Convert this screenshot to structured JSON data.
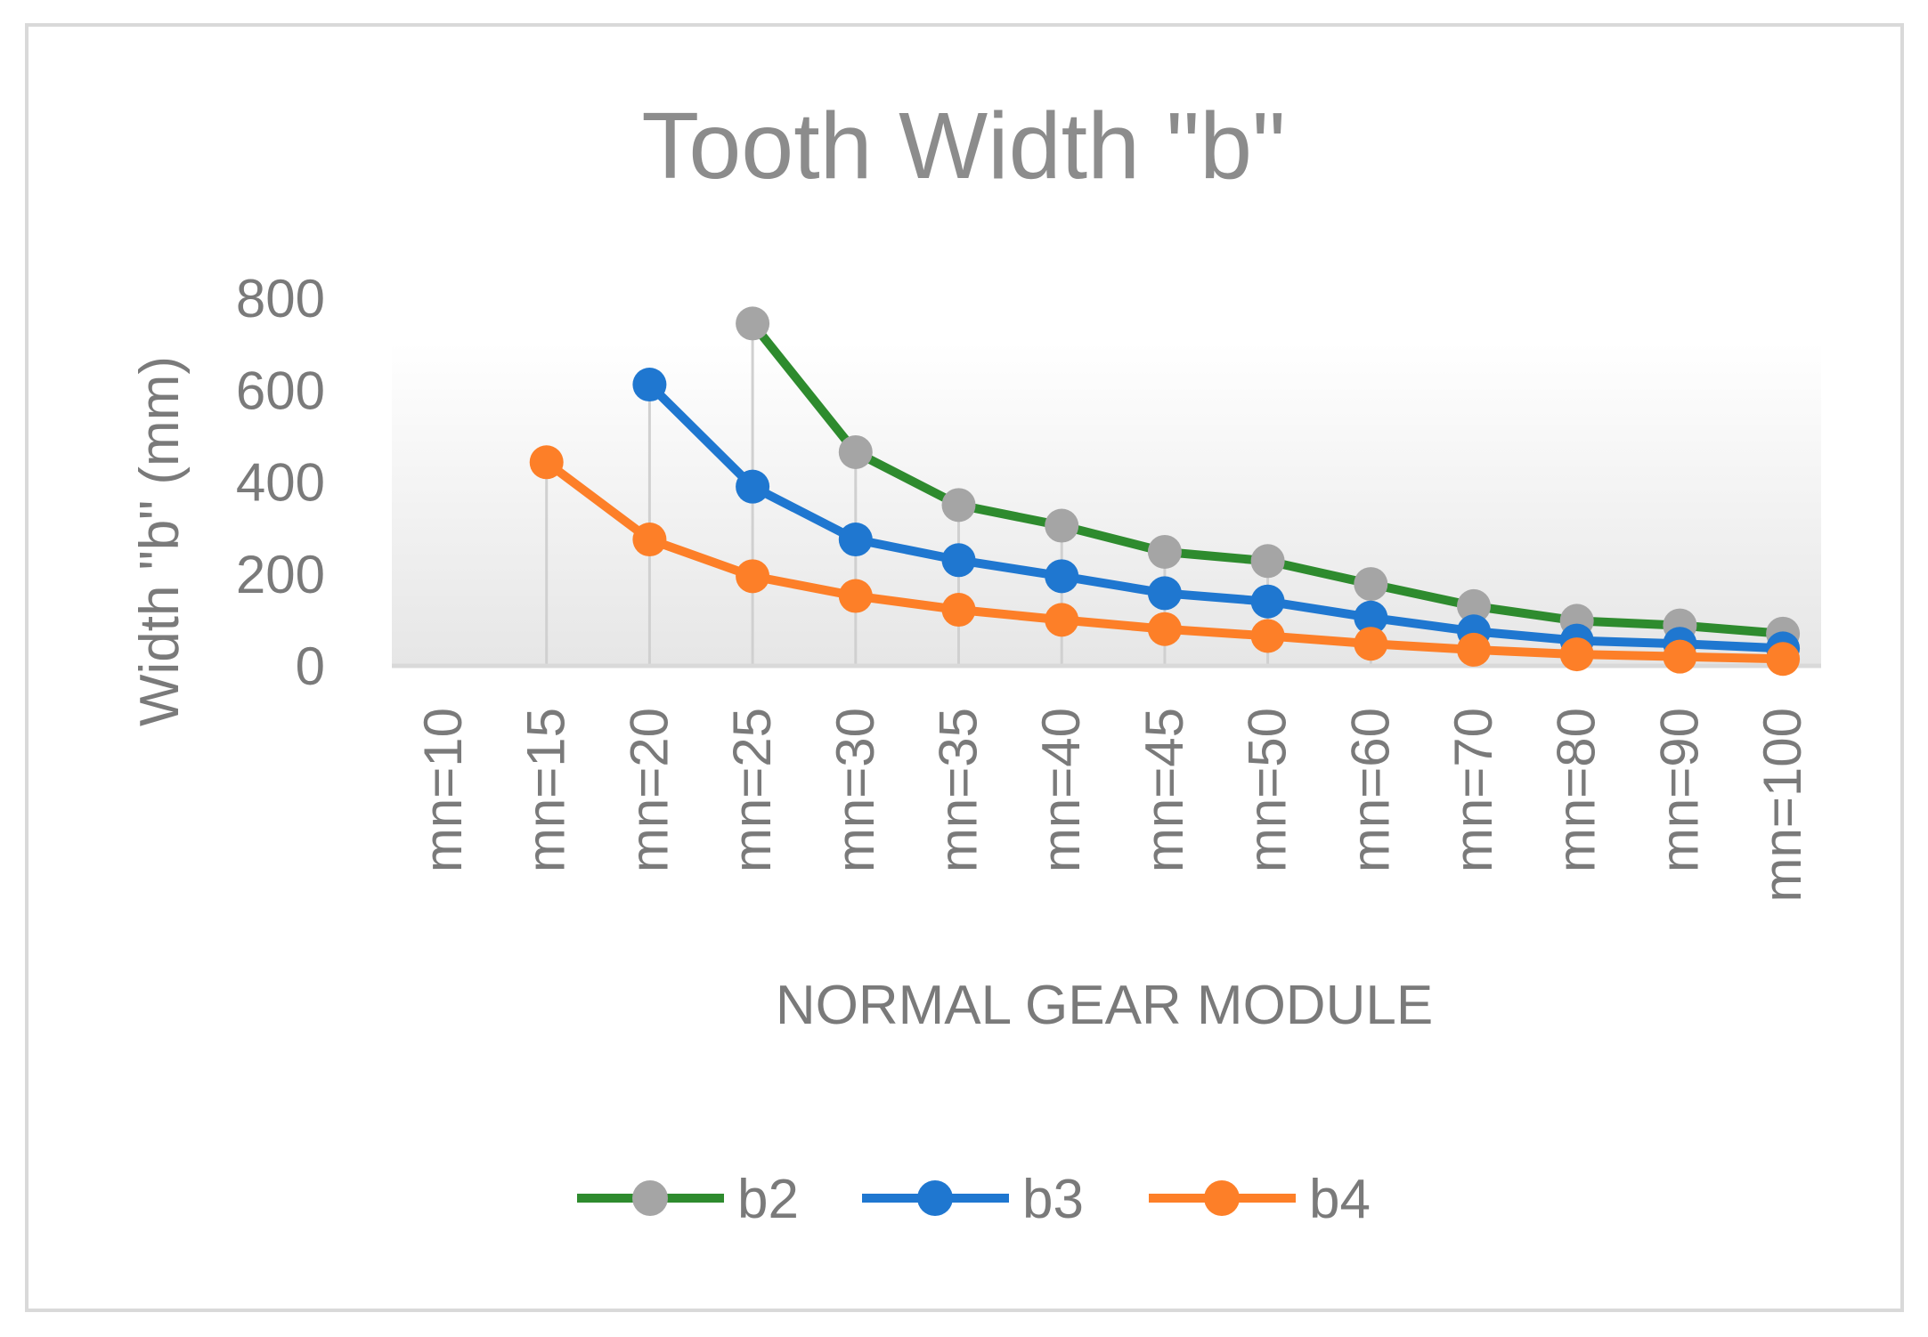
{
  "chart_data": {
    "type": "line",
    "title": "Tooth Width \"b\"",
    "xlabel": "NORMAL GEAR MODULE",
    "ylabel": "Width \"b\" (mm)",
    "ylim": [
      0,
      800
    ],
    "yticks": [
      0,
      200,
      400,
      600,
      800
    ],
    "categories": [
      "mn=10",
      "mn=15",
      "mn=20",
      "mn=25",
      "mn=30",
      "mn=35",
      "mn=40",
      "mn=45",
      "mn=50",
      "mn=60",
      "mn=70",
      "mn=80",
      "mn=90",
      "mn=100"
    ],
    "legend_position": "bottom",
    "series": [
      {
        "name": "b2",
        "line_color": "#2e8b2e",
        "marker_color": "#a5a5a5",
        "values": [
          null,
          null,
          null,
          745,
          465,
          350,
          305,
          248,
          228,
          178,
          130,
          98,
          88,
          70
        ]
      },
      {
        "name": "b3",
        "line_color": "#1f77d0",
        "marker_color": "#1f77d0",
        "values": [
          null,
          null,
          612,
          390,
          275,
          230,
          195,
          158,
          140,
          105,
          75,
          55,
          48,
          38
        ]
      },
      {
        "name": "b4",
        "line_color": "#fd7f28",
        "marker_color": "#fd7f28",
        "values": [
          null,
          443,
          275,
          195,
          152,
          122,
          100,
          80,
          65,
          48,
          35,
          25,
          20,
          15
        ]
      }
    ]
  }
}
